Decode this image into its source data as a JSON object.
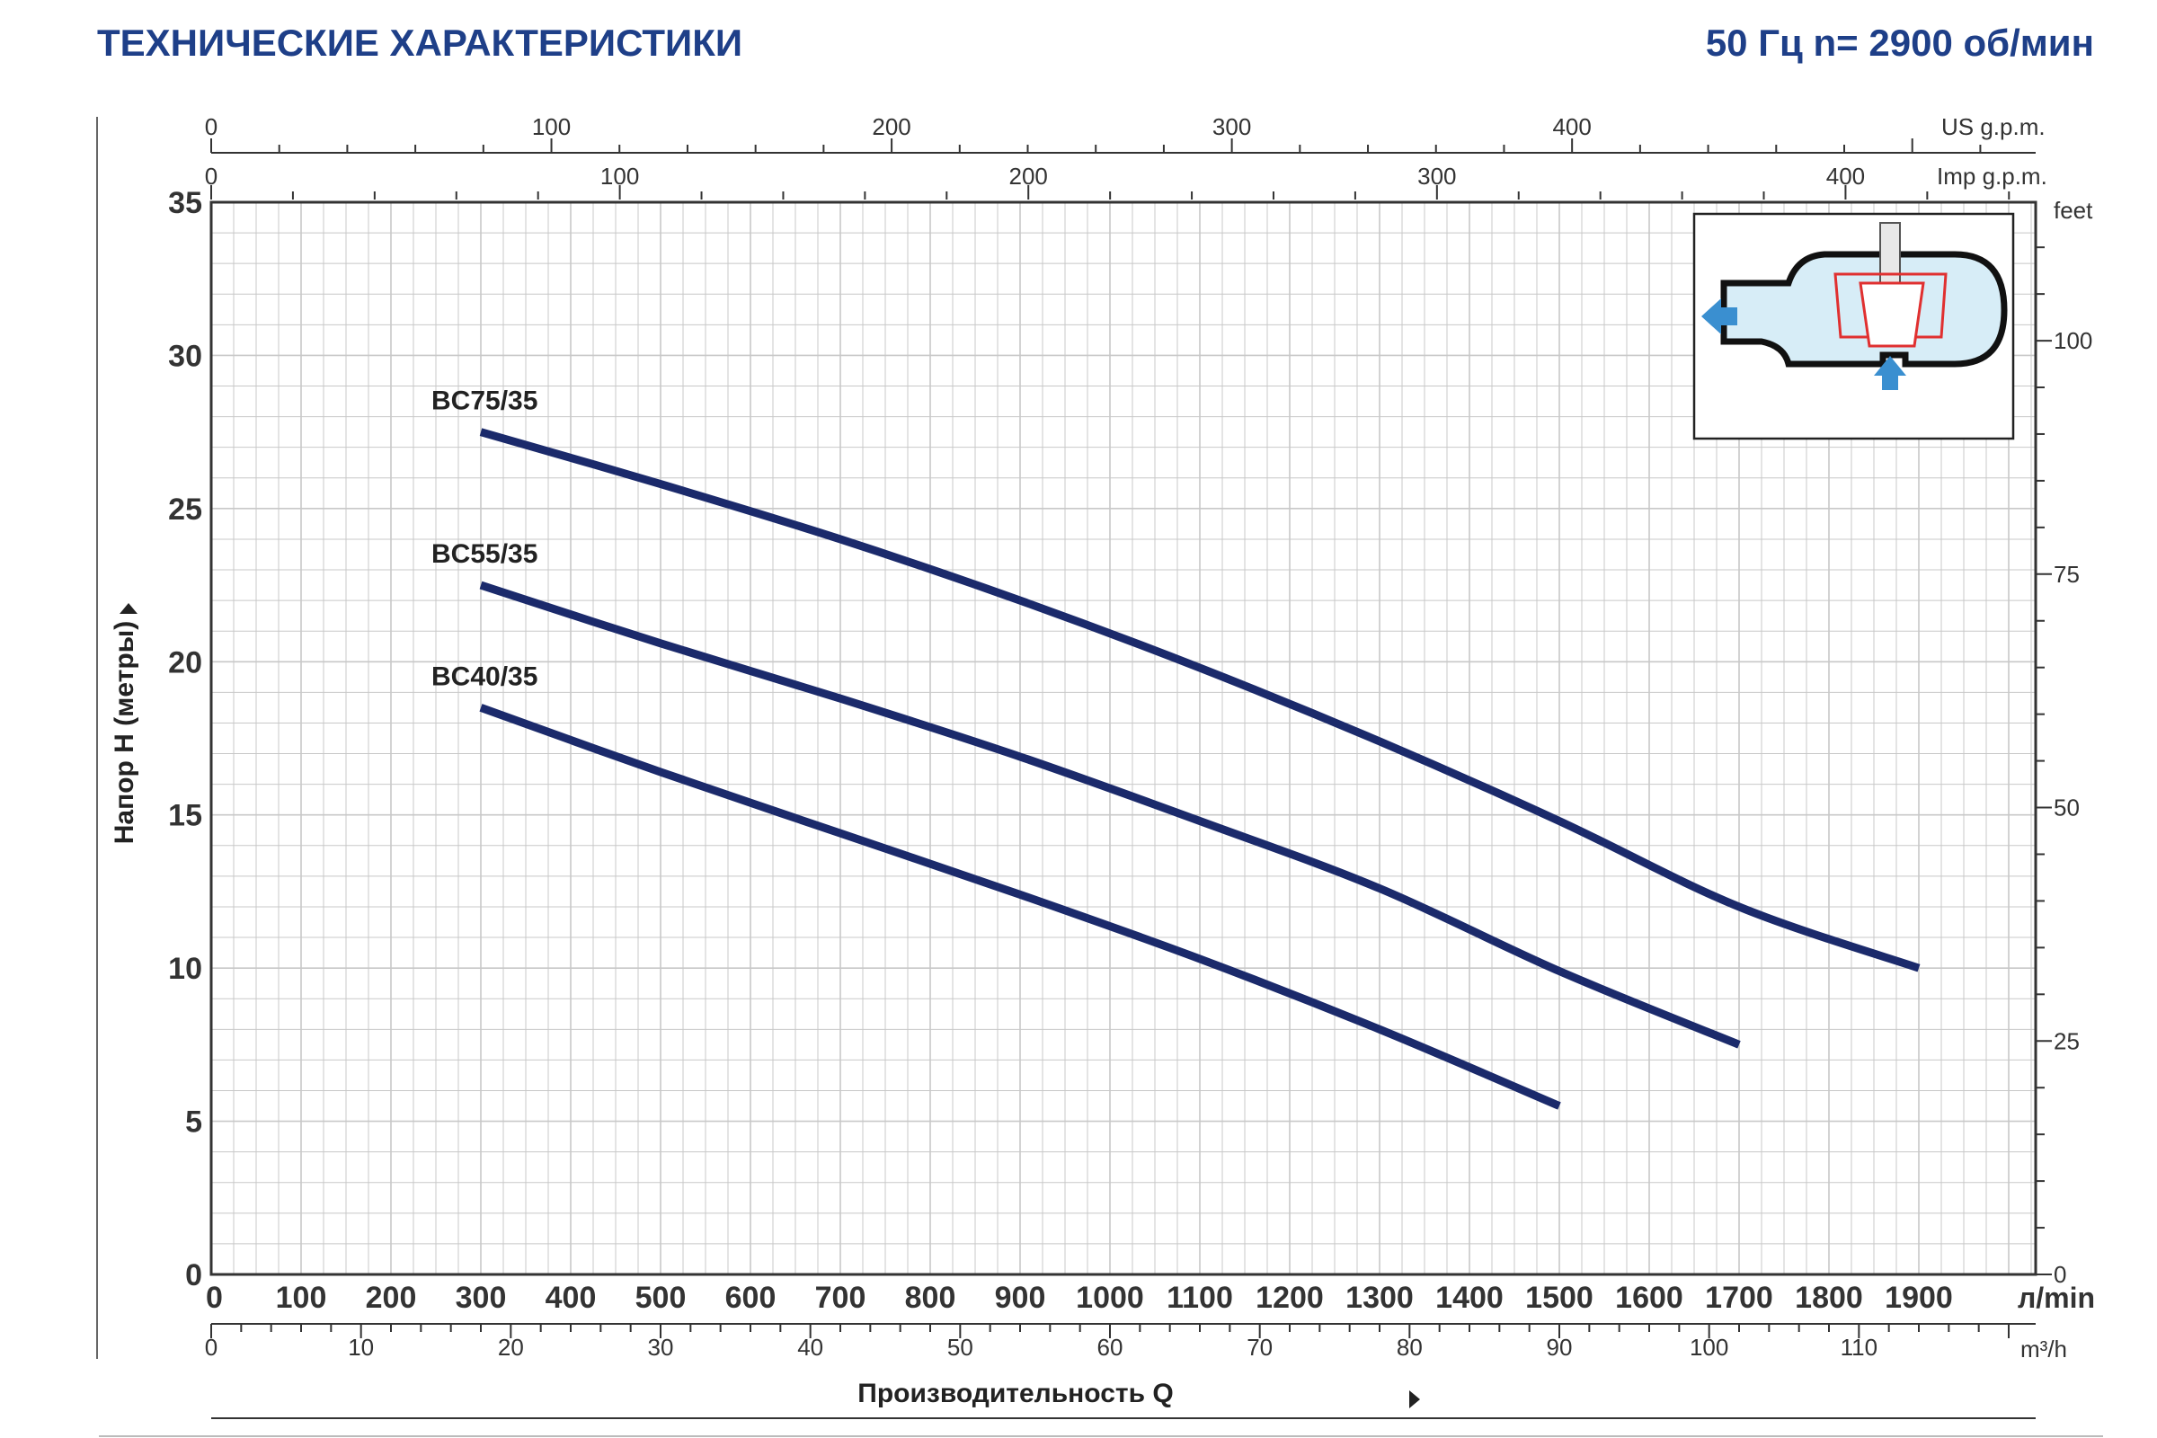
{
  "header": {
    "title": "ТЕХНИЧЕСКИЕ ХАРАКТЕРИСТИКИ",
    "subtitle": "50 Гц  n= 2900 об/мин"
  },
  "colors": {
    "accent": "#1e3f88",
    "curve": "#1b2a6b",
    "grid": "#c8c8c8",
    "axis": "#333333"
  },
  "chart_data": {
    "type": "line",
    "xlabel": "Производительность Q",
    "ylabel": "Напор H  (метры)",
    "x_unit": "л/min",
    "xlim": [
      0,
      2030
    ],
    "ylim": [
      0,
      35
    ],
    "x_ticks": [
      0,
      100,
      200,
      300,
      400,
      500,
      600,
      700,
      800,
      900,
      1000,
      1100,
      1200,
      1300,
      1400,
      1500,
      1600,
      1700,
      1800,
      1900
    ],
    "y_ticks": [
      0,
      5,
      10,
      15,
      20,
      25,
      30,
      35
    ],
    "grid": true,
    "secondary_axes": {
      "m3h": {
        "unit": "m³/h",
        "ticks": [
          0,
          10,
          20,
          30,
          40,
          50,
          60,
          70,
          80,
          90,
          100,
          110
        ]
      },
      "us_gpm": {
        "unit": "US g.p.m.",
        "ticks": [
          0,
          100,
          200,
          300,
          400
        ]
      },
      "imp_gpm": {
        "unit": "Imp g.p.m.",
        "ticks": [
          0,
          100,
          200,
          300,
          400
        ]
      },
      "feet": {
        "unit": "feet",
        "ticks": [
          0,
          25,
          50,
          75,
          100
        ]
      }
    },
    "series": [
      {
        "name": "BC75/35",
        "x": [
          300,
          500,
          700,
          900,
          1100,
          1300,
          1500,
          1700,
          1900
        ],
        "y": [
          27.5,
          25.8,
          24,
          22,
          19.8,
          17.4,
          14.8,
          12.0,
          10.0
        ]
      },
      {
        "name": "BC55/35",
        "x": [
          300,
          500,
          700,
          900,
          1100,
          1300,
          1500,
          1700
        ],
        "y": [
          22.5,
          20.6,
          18.8,
          16.9,
          14.8,
          12.6,
          9.9,
          7.5
        ]
      },
      {
        "name": "BC40/35",
        "x": [
          300,
          500,
          700,
          900,
          1100,
          1300,
          1500
        ],
        "y": [
          18.5,
          16.4,
          14.4,
          12.4,
          10.3,
          8.0,
          5.5
        ]
      }
    ]
  }
}
